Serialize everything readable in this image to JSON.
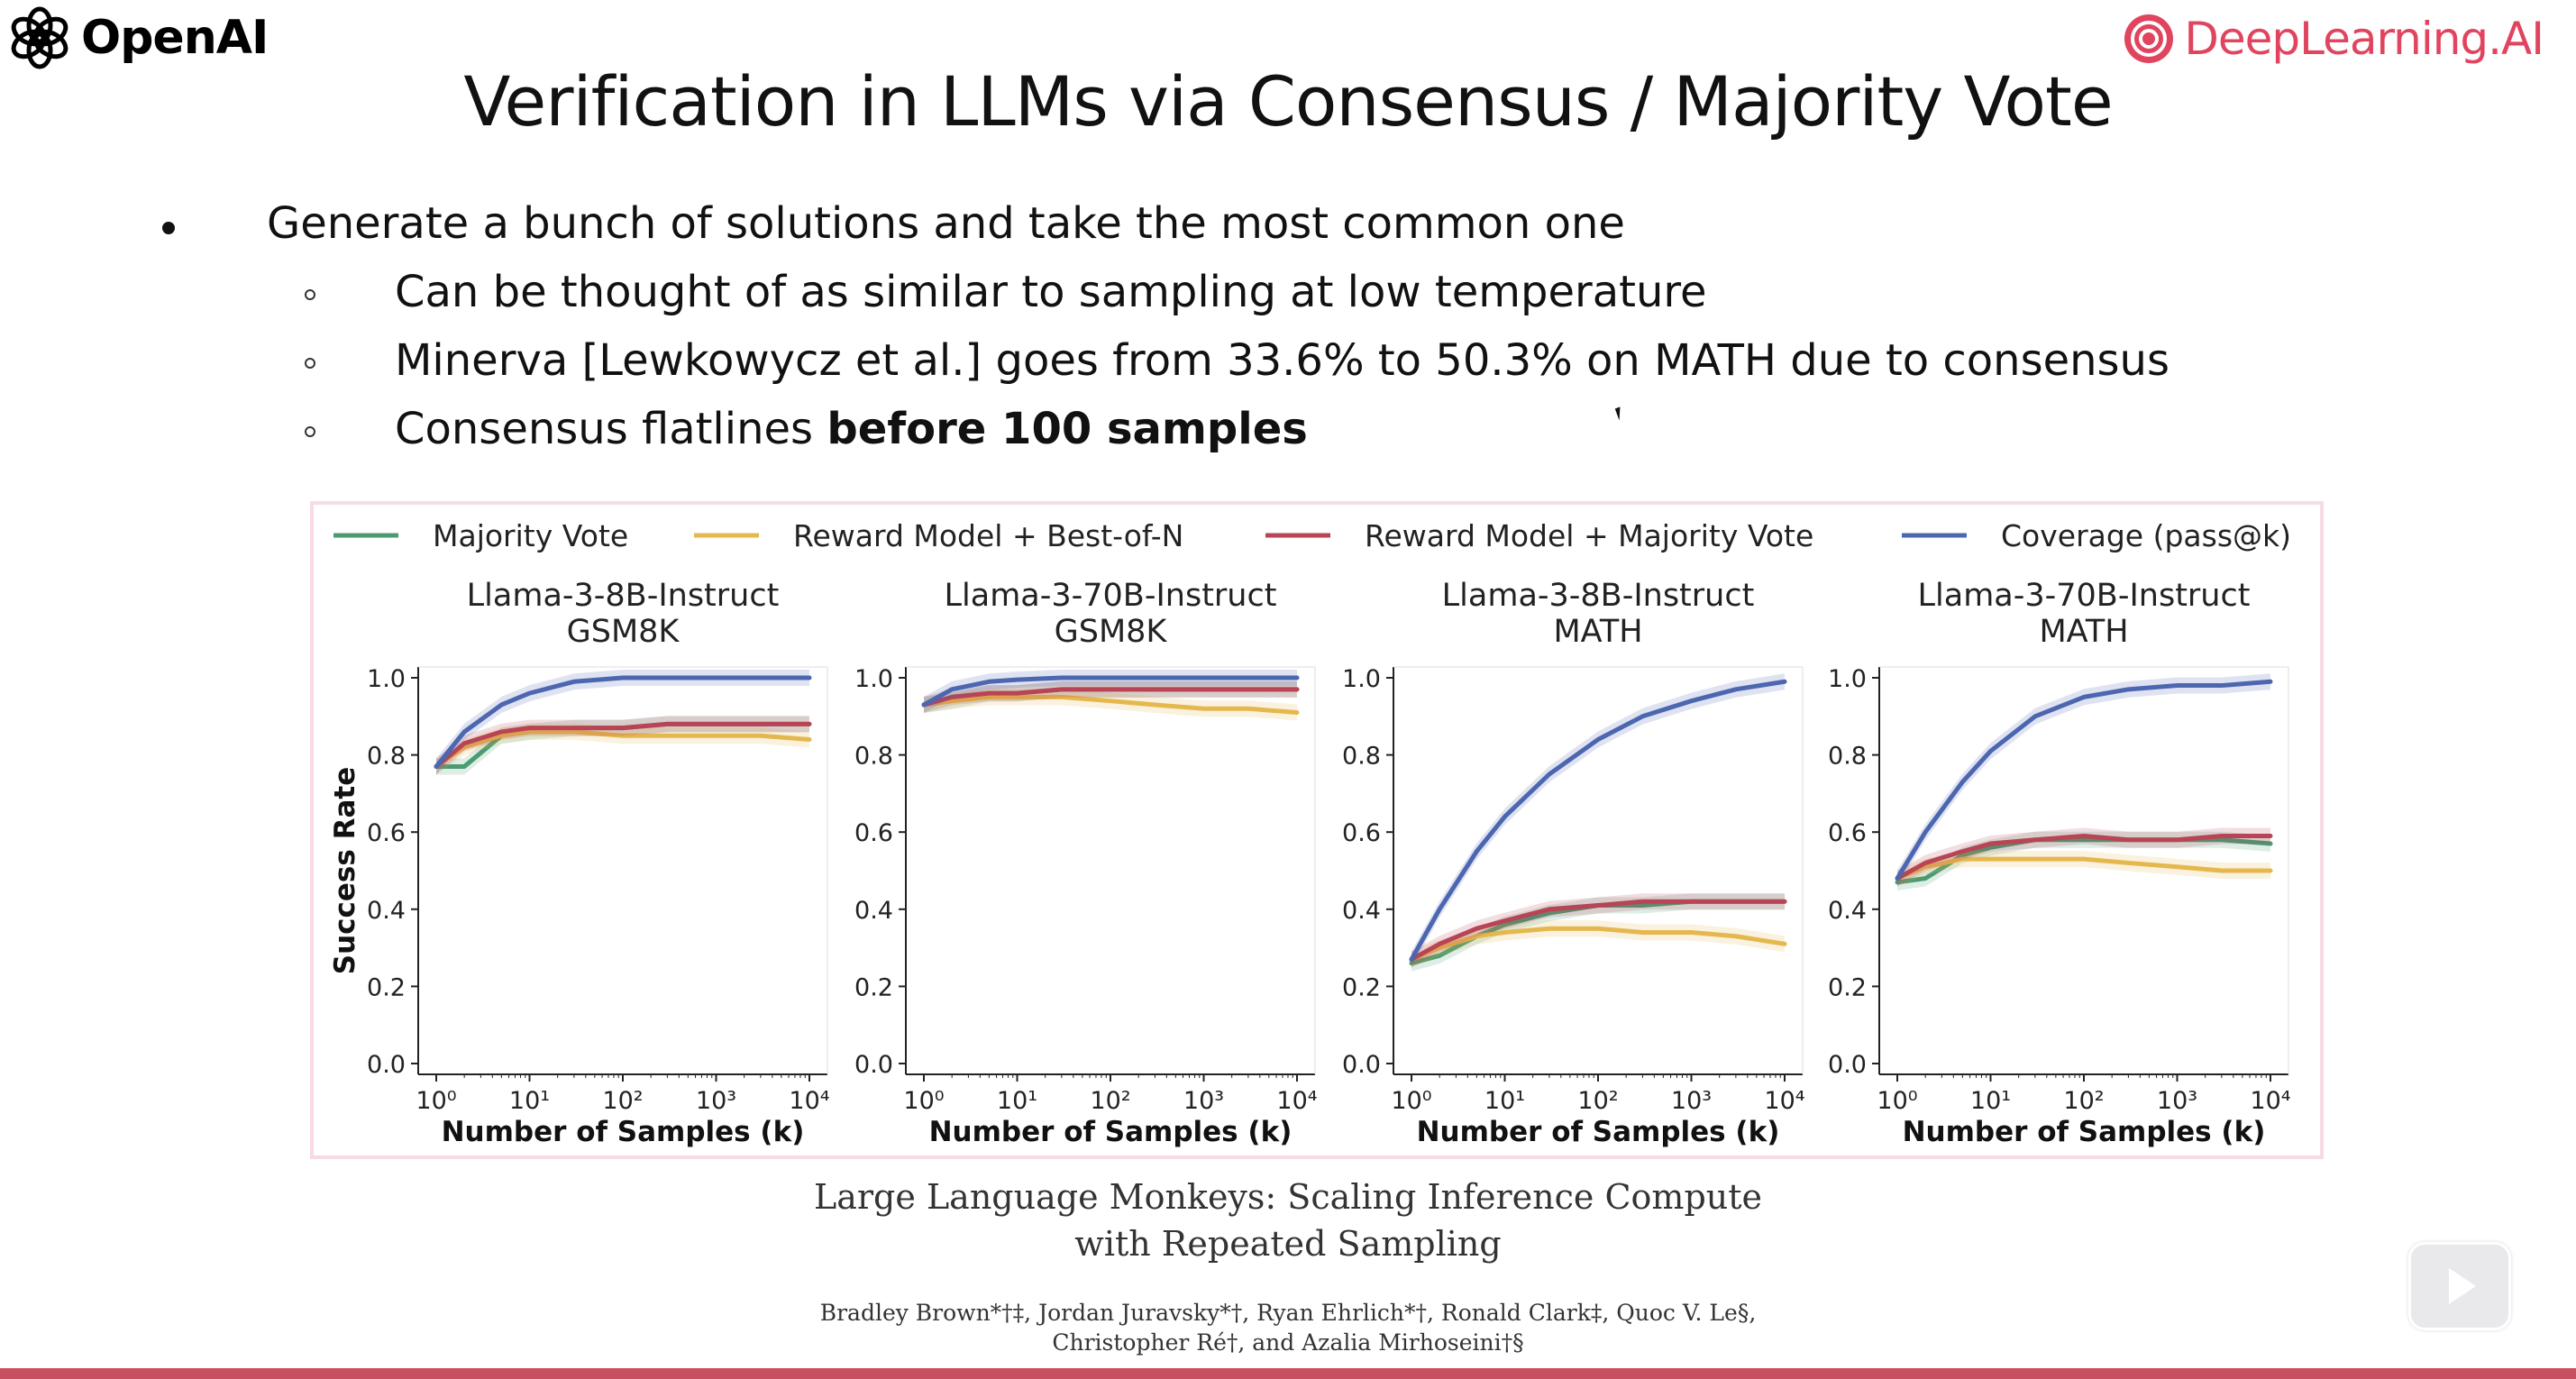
{
  "brand_left": {
    "text": "OpenAI",
    "icon": "openai-logo-icon"
  },
  "brand_right": {
    "text": "DeepLearning.AI",
    "icon": "deeplearning-logo-icon",
    "color": "#e0445e"
  },
  "slide": {
    "title": "Verification in LLMs via Consensus / Majority Vote",
    "bullet": "Generate a bunch of solutions and take the most common one",
    "sub1": "Can be thought of as similar to sampling at low temperature",
    "sub2": "Minerva [Lewkowycz et al.] goes from 33.6% to 50.3% on MATH due to consensus",
    "sub3_prefix": "Consensus flatlines ",
    "sub3_bold": "before 100 samples"
  },
  "paper": {
    "title_line1": "Large Language Monkeys: Scaling Inference Compute",
    "title_line2": "with Repeated Sampling",
    "authors_line1": "Bradley Brown*†‡, Jordan Juravsky*†, Ryan Ehrlich*†, Ronald Clark‡, Quoc V. Le§,",
    "authors_line2": "Christopher Ré†, and Azalia Mirhoseini†§"
  },
  "player": {
    "icon": "play-icon"
  },
  "chart_data": {
    "type": "line",
    "legend_position": "top",
    "legend": [
      {
        "name": "Majority Vote",
        "color": "#4a9a72"
      },
      {
        "name": "Reward Model + Best-of-N",
        "color": "#e5b84f"
      },
      {
        "name": "Reward Model + Majority Vote",
        "color": "#b84455"
      },
      {
        "name": "Coverage (pass@k)",
        "color": "#4c66b0"
      }
    ],
    "x_scale": "log",
    "x_range": [
      1,
      10000
    ],
    "x_ticks": [
      1,
      10,
      100,
      1000,
      10000
    ],
    "x_tick_labels": [
      "10⁰",
      "10¹",
      "10²",
      "10³",
      "10⁴"
    ],
    "y_range": [
      0,
      1
    ],
    "y_ticks": [
      0,
      0.2,
      0.4,
      0.6,
      0.8,
      1.0
    ],
    "y_tick_labels": [
      "0.0",
      "0.2",
      "0.4",
      "0.6",
      "0.8",
      "1.0"
    ],
    "ylabel": "Success Rate",
    "xlabel": "Number of Samples (k)",
    "panels": [
      {
        "title_line1": "Llama-3-8B-Instruct",
        "title_line2": "GSM8K",
        "x": [
          1,
          2,
          5,
          10,
          30,
          100,
          300,
          1000,
          3000,
          10000
        ],
        "series": [
          {
            "name": "Majority Vote",
            "values": [
              0.77,
              0.77,
              0.85,
              0.86,
              0.87,
              0.87,
              0.88,
              0.88,
              0.88,
              0.88
            ]
          },
          {
            "name": "Reward Model + Best-of-N",
            "values": [
              0.77,
              0.82,
              0.85,
              0.86,
              0.86,
              0.85,
              0.85,
              0.85,
              0.85,
              0.84
            ]
          },
          {
            "name": "Reward Model + Majority Vote",
            "values": [
              0.77,
              0.83,
              0.86,
              0.87,
              0.87,
              0.87,
              0.88,
              0.88,
              0.88,
              0.88
            ]
          },
          {
            "name": "Coverage (pass@k)",
            "values": [
              0.77,
              0.86,
              0.93,
              0.96,
              0.99,
              1.0,
              1.0,
              1.0,
              1.0,
              1.0
            ]
          }
        ]
      },
      {
        "title_line1": "Llama-3-70B-Instruct",
        "title_line2": "GSM8K",
        "x": [
          1,
          2,
          5,
          10,
          30,
          100,
          300,
          1000,
          3000,
          10000
        ],
        "series": [
          {
            "name": "Majority Vote",
            "values": [
              0.93,
              0.94,
              0.96,
              0.96,
              0.97,
              0.97,
              0.97,
              0.97,
              0.97,
              0.97
            ]
          },
          {
            "name": "Reward Model + Best-of-N",
            "values": [
              0.93,
              0.94,
              0.95,
              0.95,
              0.95,
              0.94,
              0.93,
              0.92,
              0.92,
              0.91
            ]
          },
          {
            "name": "Reward Model + Majority Vote",
            "values": [
              0.93,
              0.95,
              0.96,
              0.96,
              0.97,
              0.97,
              0.97,
              0.97,
              0.97,
              0.97
            ]
          },
          {
            "name": "Coverage (pass@k)",
            "values": [
              0.93,
              0.97,
              0.99,
              0.995,
              1.0,
              1.0,
              1.0,
              1.0,
              1.0,
              1.0
            ]
          }
        ]
      },
      {
        "title_line1": "Llama-3-8B-Instruct",
        "title_line2": "MATH",
        "x": [
          1,
          2,
          5,
          10,
          30,
          100,
          300,
          1000,
          3000,
          10000
        ],
        "series": [
          {
            "name": "Majority Vote",
            "values": [
              0.26,
              0.28,
              0.33,
              0.36,
              0.39,
              0.41,
              0.41,
              0.42,
              0.42,
              0.42
            ]
          },
          {
            "name": "Reward Model + Best-of-N",
            "values": [
              0.27,
              0.3,
              0.33,
              0.34,
              0.35,
              0.35,
              0.34,
              0.34,
              0.33,
              0.31
            ]
          },
          {
            "name": "Reward Model + Majority Vote",
            "values": [
              0.27,
              0.31,
              0.35,
              0.37,
              0.4,
              0.41,
              0.42,
              0.42,
              0.42,
              0.42
            ]
          },
          {
            "name": "Coverage (pass@k)",
            "values": [
              0.27,
              0.4,
              0.55,
              0.64,
              0.75,
              0.84,
              0.9,
              0.94,
              0.97,
              0.99
            ]
          }
        ]
      },
      {
        "title_line1": "Llama-3-70B-Instruct",
        "title_line2": "MATH",
        "x": [
          1,
          2,
          5,
          10,
          30,
          100,
          300,
          1000,
          3000,
          10000
        ],
        "series": [
          {
            "name": "Majority Vote",
            "values": [
              0.47,
              0.48,
              0.54,
              0.56,
              0.58,
              0.58,
              0.58,
              0.58,
              0.58,
              0.57
            ]
          },
          {
            "name": "Reward Model + Best-of-N",
            "values": [
              0.48,
              0.51,
              0.53,
              0.53,
              0.53,
              0.53,
              0.52,
              0.51,
              0.5,
              0.5
            ]
          },
          {
            "name": "Reward Model + Majority Vote",
            "values": [
              0.48,
              0.52,
              0.55,
              0.57,
              0.58,
              0.59,
              0.58,
              0.58,
              0.59,
              0.59
            ]
          },
          {
            "name": "Coverage (pass@k)",
            "values": [
              0.48,
              0.6,
              0.73,
              0.81,
              0.9,
              0.95,
              0.97,
              0.98,
              0.98,
              0.99
            ]
          }
        ]
      }
    ]
  }
}
